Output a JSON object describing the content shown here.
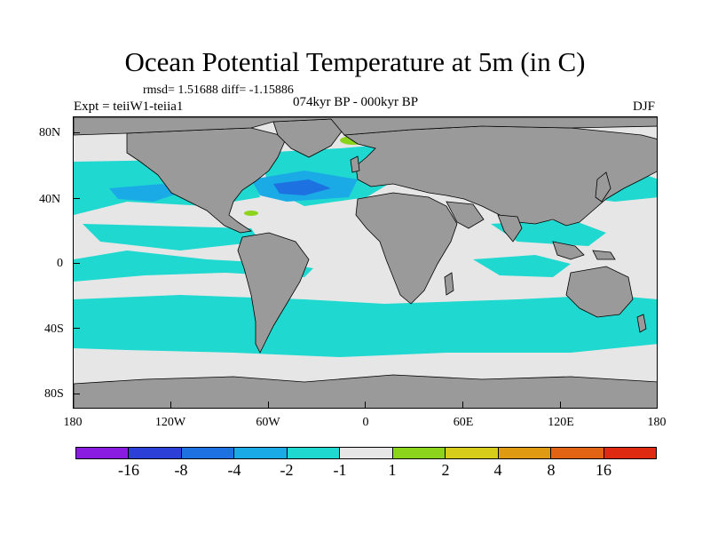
{
  "title": "Ocean Potential Temperature at 5m (in C)",
  "stats_text": "rmsd= 1.51688 diff= -1.15886",
  "experiment_label": "Expt = teiiW1-teiia1",
  "period_label": "074kyr BP - 000kyr BP",
  "season_label": "DJF",
  "y_ticks": [
    "80N",
    "40N",
    "0",
    "40S",
    "80S"
  ],
  "x_ticks": [
    "180",
    "120W",
    "60W",
    "0",
    "60E",
    "120E",
    "180"
  ],
  "colorbar": {
    "colors": [
      "#8a1be0",
      "#2c3fd6",
      "#1e71e0",
      "#1aabe6",
      "#1fd8d0",
      "#e6e6e6",
      "#8cd41c",
      "#d7cc1a",
      "#e09a12",
      "#e06414",
      "#de2a10"
    ],
    "labels": [
      "-16",
      "-8",
      "-4",
      "-2",
      "-1",
      "1",
      "2",
      "4",
      "8",
      "16"
    ]
  },
  "colors": {
    "land": "#9a9a9a",
    "ocean_neutral": "#e6e6e6",
    "cyan": "#1fd8d0",
    "light_blue": "#1aabe6",
    "blue": "#1e71e0",
    "green": "#8cd41c",
    "yellow": "#d7cc1a"
  }
}
